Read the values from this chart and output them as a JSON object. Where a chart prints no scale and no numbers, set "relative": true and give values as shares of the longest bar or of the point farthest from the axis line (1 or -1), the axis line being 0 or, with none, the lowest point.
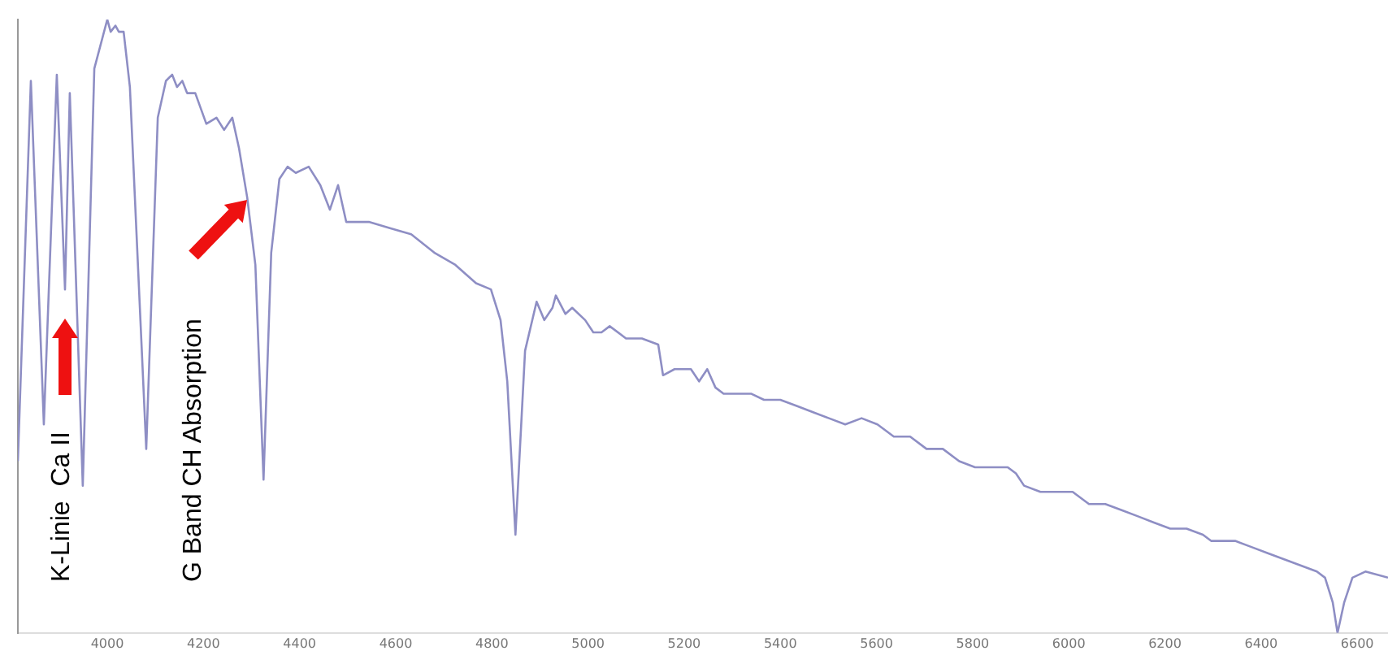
{
  "chart_data": {
    "type": "line",
    "relative": true,
    "grid": false,
    "legend": false,
    "marker": "none",
    "line_style": "solid",
    "xlim": [
      3814,
      6664
    ],
    "xticks": [
      4000,
      4200,
      4400,
      4600,
      4800,
      5000,
      5200,
      5400,
      5600,
      5800,
      6000,
      6200,
      6400,
      6600
    ],
    "annotations": [
      "K-Linie  Ca II",
      "G Band CH Absorption"
    ],
    "series": [
      {
        "color": "#8e8ec4",
        "x": [
          3814,
          3841,
          3868,
          3895,
          3912,
          3922,
          3949,
          3973,
          4000,
          4007,
          4017,
          4024,
          4034,
          4047,
          4081,
          4105,
          4122,
          4135,
          4145,
          4156,
          4166,
          4183,
          4206,
          4227,
          4243,
          4260,
          4274,
          4291,
          4308,
          4325,
          4341,
          4358,
          4375,
          4392,
          4419,
          4443,
          4463,
          4480,
          4497,
          4544,
          4588,
          4632,
          4680,
          4724,
          4767,
          4798,
          4818,
          4832,
          4849,
          4869,
          4893,
          4909,
          4926,
          4933,
          4953,
          4967,
          4994,
          5011,
          5028,
          5045,
          5079,
          5112,
          5146,
          5156,
          5180,
          5214,
          5231,
          5248,
          5265,
          5282,
          5315,
          5339,
          5366,
          5400,
          5434,
          5467,
          5501,
          5535,
          5569,
          5602,
          5636,
          5670,
          5704,
          5738,
          5772,
          5805,
          5839,
          5873,
          5890,
          5907,
          5941,
          5974,
          6008,
          6025,
          6042,
          6076,
          6110,
          6144,
          6177,
          6211,
          6245,
          6279,
          6296,
          6313,
          6346,
          6380,
          6414,
          6448,
          6482,
          6516,
          6533,
          6549,
          6559,
          6573,
          6590,
          6617,
          6664
        ],
        "values": [
          0.28,
          0.9,
          0.34,
          0.91,
          0.56,
          0.88,
          0.24,
          0.92,
          1.0,
          0.98,
          0.99,
          0.98,
          0.98,
          0.89,
          0.3,
          0.84,
          0.9,
          0.91,
          0.89,
          0.9,
          0.88,
          0.88,
          0.83,
          0.84,
          0.82,
          0.84,
          0.79,
          0.71,
          0.6,
          0.25,
          0.62,
          0.74,
          0.76,
          0.75,
          0.76,
          0.73,
          0.69,
          0.73,
          0.67,
          0.67,
          0.66,
          0.65,
          0.62,
          0.6,
          0.57,
          0.56,
          0.51,
          0.41,
          0.16,
          0.46,
          0.54,
          0.51,
          0.53,
          0.55,
          0.52,
          0.53,
          0.51,
          0.49,
          0.49,
          0.5,
          0.48,
          0.48,
          0.47,
          0.42,
          0.43,
          0.43,
          0.41,
          0.43,
          0.4,
          0.39,
          0.39,
          0.39,
          0.38,
          0.38,
          0.37,
          0.36,
          0.35,
          0.34,
          0.35,
          0.34,
          0.32,
          0.32,
          0.3,
          0.3,
          0.28,
          0.27,
          0.27,
          0.27,
          0.26,
          0.24,
          0.23,
          0.23,
          0.23,
          0.22,
          0.21,
          0.21,
          0.2,
          0.19,
          0.18,
          0.17,
          0.17,
          0.16,
          0.15,
          0.15,
          0.15,
          0.14,
          0.13,
          0.12,
          0.11,
          0.1,
          0.09,
          0.05,
          0,
          0.05,
          0.09,
          0.1,
          0.09
        ]
      }
    ]
  }
}
